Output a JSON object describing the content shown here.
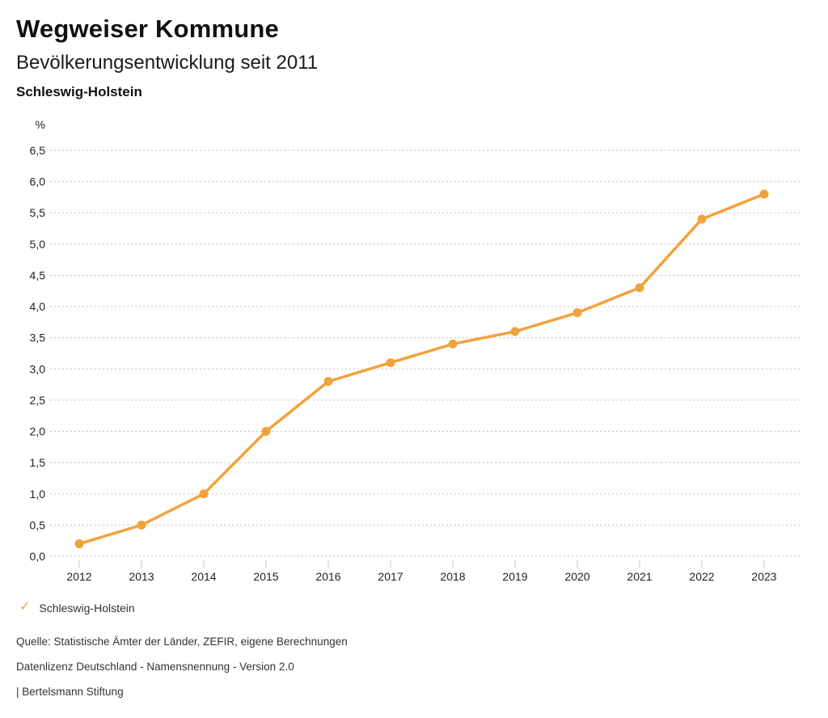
{
  "header": {
    "title": "Wegweiser Kommune",
    "subtitle": "Bevölkerungsentwicklung seit 2011",
    "region": "Schleswig-Holstein"
  },
  "chart_data": {
    "type": "line",
    "title": "Bevölkerungsentwicklung seit 2011",
    "region": "Schleswig-Holstein",
    "xlabel": "",
    "ylabel": "%",
    "categories": [
      "2012",
      "2013",
      "2014",
      "2015",
      "2016",
      "2017",
      "2018",
      "2019",
      "2020",
      "2021",
      "2022",
      "2023"
    ],
    "series": [
      {
        "name": "Schleswig-Holstein",
        "color": "#F2A23C",
        "values": [
          0.2,
          0.5,
          1.0,
          2.0,
          2.8,
          3.1,
          3.4,
          3.6,
          3.9,
          4.3,
          5.4,
          5.8
        ]
      }
    ],
    "ylim": [
      0,
      6.5
    ],
    "ytick_step": 0.5,
    "ytick_labels": [
      "0,0",
      "0,5",
      "1,0",
      "1,5",
      "2,0",
      "2,5",
      "3,0",
      "3,5",
      "4,0",
      "4,5",
      "5,0",
      "5,5",
      "6,0",
      "6,5"
    ],
    "grid": "horizontal-dotted",
    "legend_position": "bottom-left",
    "marker": "circle"
  },
  "legend": {
    "items": [
      {
        "icon": "check-icon",
        "label": "Schleswig-Holstein"
      }
    ]
  },
  "footer": {
    "lines": [
      "Quelle: Statistische Ämter der Länder, ZEFIR, eigene Berechnungen",
      "Datenlizenz Deutschland - Namensnennung - Version 2.0",
      "| Bertelsmann Stiftung"
    ]
  },
  "colors": {
    "series": "#F2A23C",
    "gridline": "#c4c4c4",
    "text": "#222222"
  }
}
